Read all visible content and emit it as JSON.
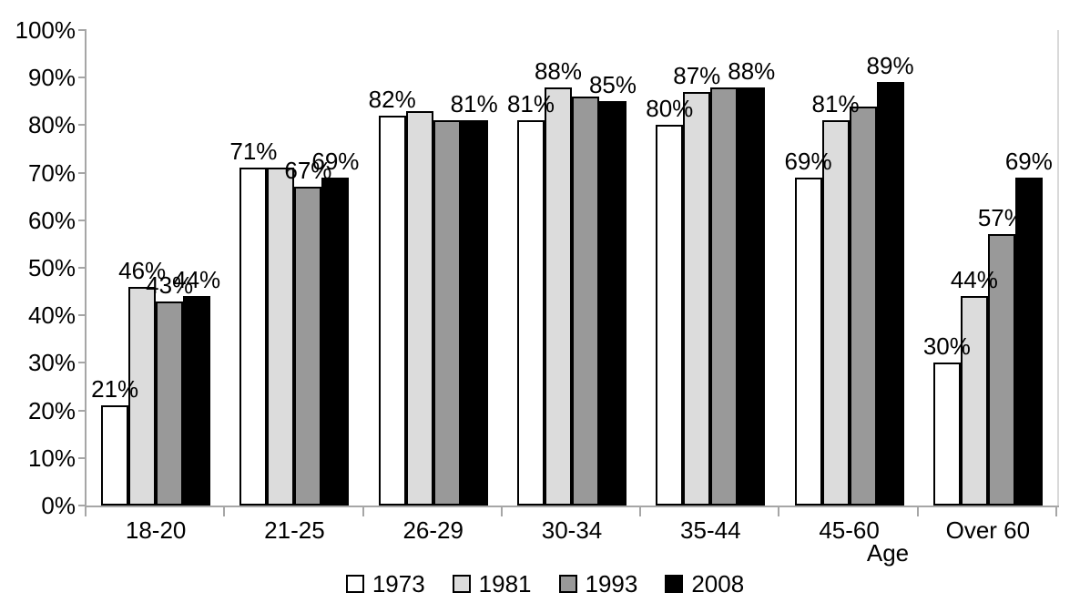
{
  "chart_data": {
    "type": "bar",
    "title": "",
    "categories": [
      "18-20",
      "21-25",
      "26-29",
      "30-34",
      "35-44",
      "45-60",
      "Over 60"
    ],
    "series": [
      {
        "name": "1973",
        "color": "#ffffff",
        "values": [
          21,
          71,
          82,
          81,
          80,
          69,
          30
        ],
        "labels": [
          "21%",
          "71%",
          "82%",
          "81%",
          "80%",
          "69%",
          "30%"
        ]
      },
      {
        "name": "1981",
        "color": "#dcdcdc",
        "values": [
          46,
          71,
          83,
          88,
          87,
          81,
          44
        ],
        "labels": [
          "46%",
          "",
          "",
          "88%",
          "87%",
          "81%",
          "44%"
        ]
      },
      {
        "name": "1993",
        "color": "#999999",
        "values": [
          43,
          67,
          81,
          86,
          88,
          84,
          57
        ],
        "labels": [
          "43%",
          "67%",
          "",
          "",
          "",
          "",
          "57%"
        ]
      },
      {
        "name": "2008",
        "color": "#000000",
        "values": [
          44,
          69,
          81,
          85,
          88,
          89,
          69
        ],
        "labels": [
          "44%",
          "69%",
          "81%",
          "85%",
          "88%",
          "89%",
          "69%"
        ]
      }
    ],
    "xlabel": "Age",
    "ylabel": "",
    "ylim": [
      0,
      100
    ],
    "yticks": [
      "0%",
      "10%",
      "20%",
      "30%",
      "40%",
      "50%",
      "60%",
      "70%",
      "80%",
      "90%",
      "100%"
    ],
    "grid": false,
    "legend_position": "bottom",
    "axis_color": "#a6a6a6",
    "plot_right_border_color": "#d9d9d9"
  }
}
